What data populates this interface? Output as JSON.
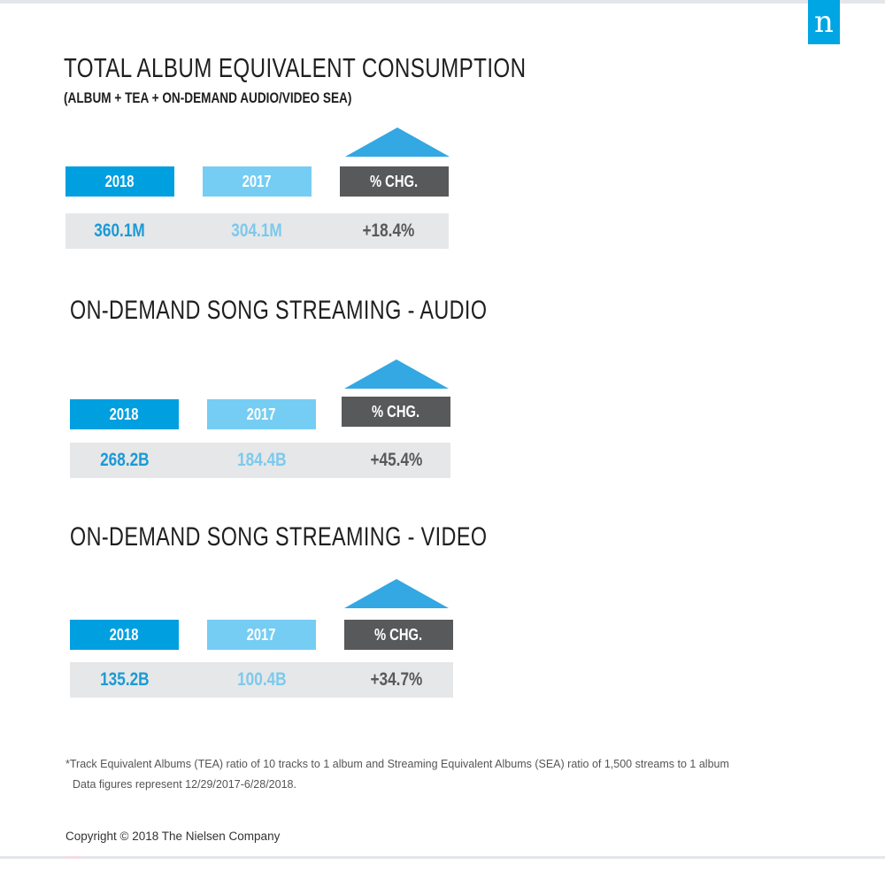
{
  "brand": {
    "logo_letter": "n",
    "color": "#00a5e3"
  },
  "colors": {
    "y2018": "#009fe0",
    "y2017": "#76cdf3",
    "change": "#58595b",
    "row_bg": "#e6e7e8",
    "arrow": "#33a8e3"
  },
  "sections": [
    {
      "title": "TOTAL ALBUM EQUIVALENT CONSUMPTION",
      "subtitle": "(ALBUM + TEA + ON-DEMAND AUDIO/VIDEO SEA)",
      "labels": {
        "y2018": "2018",
        "y2017": "2017",
        "change": "% CHG."
      },
      "values": {
        "y2018": "360.1M",
        "y2017": "304.1M",
        "change": "+18.4%"
      },
      "arrow_icon": "up-triangle-icon"
    },
    {
      "title": "ON-DEMAND SONG STREAMING - AUDIO",
      "labels": {
        "y2018": "2018",
        "y2017": "2017",
        "change": "% CHG."
      },
      "values": {
        "y2018": "268.2B",
        "y2017": "184.4B",
        "change": "+45.4%"
      },
      "arrow_icon": "up-triangle-icon"
    },
    {
      "title": "ON-DEMAND SONG STREAMING - VIDEO",
      "labels": {
        "y2018": "2018",
        "y2017": "2017",
        "change": "% CHG."
      },
      "values": {
        "y2018": "135.2B",
        "y2017": "100.4B",
        "change": "+34.7%"
      },
      "arrow_icon": "up-triangle-icon"
    }
  ],
  "footnote": {
    "line1": "*Track Equivalent Albums (TEA)  ratio of 10 tracks to 1 album and Streaming Equivalent Albums (SEA) ratio of 1,500 streams to 1 album",
    "line2": "Data figures represent 12/29/2017-6/28/2018."
  },
  "copyright": "Copyright © 2018 The Nielsen Company"
}
